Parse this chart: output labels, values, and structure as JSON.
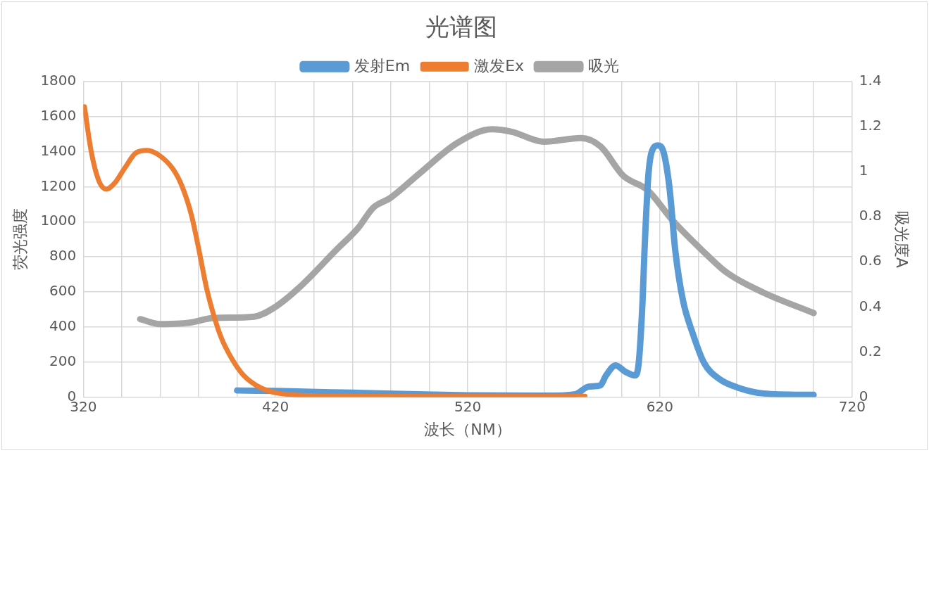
{
  "chart_data": {
    "type": "line",
    "title": "光谱图",
    "xlabel": "波长（NM）",
    "ylabel": "荧光强度",
    "y2label": "吸光度A",
    "xlim": [
      320,
      720
    ],
    "xticks": [
      320,
      {
        "value": 340,
        "label": null
      },
      {
        "value": 360,
        "label": null
      },
      {
        "value": 380,
        "label": null
      },
      {
        "value": 400,
        "label": null
      },
      420,
      {
        "value": 440,
        "label": null
      },
      {
        "value": 460,
        "label": null
      },
      {
        "value": 480,
        "label": null
      },
      {
        "value": 500,
        "label": null
      },
      520,
      {
        "value": 540,
        "label": null
      },
      {
        "value": 560,
        "label": null
      },
      {
        "value": 580,
        "label": null
      },
      {
        "value": 600,
        "label": null
      },
      620,
      {
        "value": 640,
        "label": null
      },
      {
        "value": 660,
        "label": null
      },
      {
        "value": 680,
        "label": null
      },
      {
        "value": 700,
        "label": null
      },
      720
    ],
    "ylim": [
      0,
      1800
    ],
    "yticks": [
      0,
      200,
      400,
      600,
      800,
      1000,
      1200,
      1400,
      1600,
      1800
    ],
    "y2lim": [
      0,
      1.4
    ],
    "y2ticks": [
      0,
      0.2,
      0.4,
      0.6,
      0.8,
      1,
      1.2,
      1.4
    ],
    "grid": true,
    "legend": "top",
    "marker": "none",
    "line_style": "solid",
    "series": [
      {
        "name": "发射Em",
        "color": "#5b9bd5",
        "x": [
          400,
          420,
          460,
          520,
          560,
          576,
          583,
          589,
          592,
          597,
          602,
          607,
          609,
          611,
          612,
          614,
          616,
          619,
          622,
          625,
          628,
          632,
          637,
          643,
          651,
          661,
          674,
          700
        ],
        "values": [
          38,
          35,
          25,
          10,
          8,
          17,
          60,
          67,
          124,
          181,
          145,
          124,
          197,
          552,
          837,
          1264,
          1407,
          1435,
          1393,
          1193,
          837,
          552,
          366,
          195,
          103,
          53,
          21,
          13
        ]
      },
      {
        "name": "激发Ex",
        "color": "#ed7d31",
        "x": [
          320.6,
          324,
          328,
          332,
          336.5,
          341.6,
          347.4,
          353.2,
          359.6,
          366.7,
          371.2,
          376.3,
          380.2,
          384.1,
          387.9,
          391.8,
          397,
          403.4,
          412.4,
          425,
          460,
          520,
          581
        ],
        "values": [
          1656,
          1407,
          1236,
          1186,
          1223,
          1307,
          1393,
          1407,
          1378,
          1300,
          1207,
          1036,
          837,
          623,
          466,
          338,
          224,
          124,
          53,
          17,
          5,
          4,
          5
        ]
      },
      {
        "name": "吸光",
        "color": "#a5a5a5",
        "axis": "y2",
        "x": [
          349.6,
          359.9,
          374.1,
          388.3,
          408.9,
          419.2,
          432.1,
          451.4,
          463,
          470.7,
          479.7,
          495.2,
          514.5,
          532.6,
          542.9,
          559.6,
          578.9,
          589.2,
          600.8,
          613.7,
          626.6,
          642,
          655,
          674.3,
          700
        ],
        "values": [
          0.346,
          0.324,
          0.329,
          0.351,
          0.357,
          0.396,
          0.484,
          0.651,
          0.75,
          0.839,
          0.883,
          0.994,
          1.127,
          1.188,
          1.177,
          1.133,
          1.149,
          1.111,
          0.983,
          0.917,
          0.784,
          0.651,
          0.551,
          0.462,
          0.373
        ]
      }
    ]
  }
}
